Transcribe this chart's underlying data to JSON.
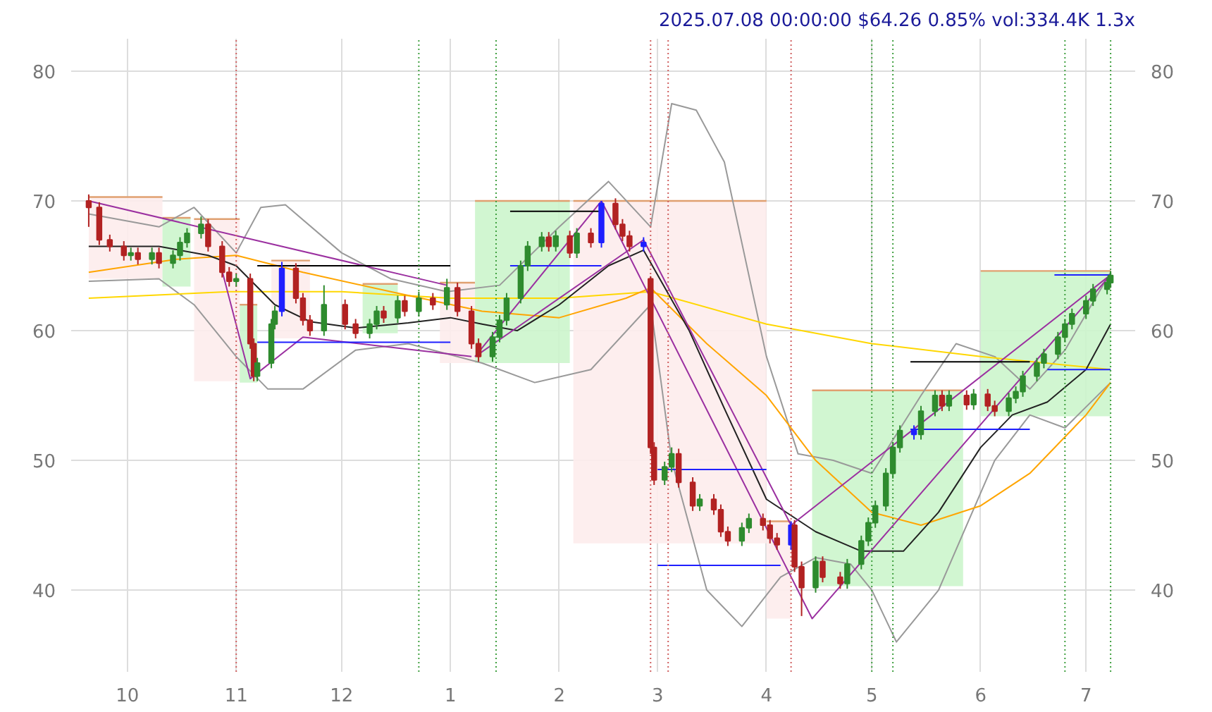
{
  "chart_data": {
    "type": "candlestick",
    "title": "2025.07.08 00:00:00 $64.26 0.85% vol:334.4K 1.3x",
    "xlim": [
      "2024-09-15",
      "2025-07-15"
    ],
    "xticks": [
      {
        "value": "2024-10-01",
        "label": "10"
      },
      {
        "value": "2024-11-01",
        "label": "11"
      },
      {
        "value": "2024-12-01",
        "label": "12"
      },
      {
        "value": "2025-01-01",
        "label": "1"
      },
      {
        "value": "2025-02-01",
        "label": "2"
      },
      {
        "value": "2025-03-01",
        "label": "3"
      },
      {
        "value": "2025-04-01",
        "label": "4"
      },
      {
        "value": "2025-05-01",
        "label": "5"
      },
      {
        "value": "2025-06-01",
        "label": "6"
      },
      {
        "value": "2025-07-01",
        "label": "7"
      }
    ],
    "ylim": [
      33.7,
      82.5
    ],
    "yticks": [
      40,
      50,
      60,
      70,
      80
    ],
    "y2lim": [
      33.7,
      82.5
    ],
    "y2ticks": [
      40,
      50,
      60,
      70,
      80
    ],
    "grid": true,
    "colors": [
      "#b22222",
      "#b22222",
      "#b22222",
      "#b22222",
      "#2e8b2e",
      "#b22222",
      "#2e8b2e",
      "#b22222",
      "#2e8b2e",
      "#2e8b2e",
      "#2e8b2e",
      "#2e8b2e",
      "#b22222",
      "#b22222",
      "#b22222",
      "#2e8b2e",
      "#b22222",
      "#b22222",
      "#2e8b2e",
      "#2e8b2e",
      "#2e8b2e",
      "#1f1fff",
      "#b22222",
      "#b22222",
      "#b22222",
      "#2e8b2e",
      "#b22222",
      "#b22222",
      "#2e8b2e",
      "#2e8b2e",
      "#b22222",
      "#2e8b2e",
      "#b22222",
      "#2e8b2e",
      "#b22222",
      "#2e8b2e",
      "#b22222",
      "#b22222",
      "#b22222",
      "#2e8b2e",
      "#2e8b2e",
      "#2e8b2e",
      "#2e8b2e",
      "#2e8b2e",
      "#2e8b2e",
      "#b22222",
      "#2e8b2e",
      "#b22222",
      "#2e8b2e",
      "#b22222",
      "#1f1fff",
      "#b22222",
      "#b22222",
      "#b22222",
      "#1f1fff",
      "#b22222",
      "#b22222",
      "#2e8b2e",
      "#2e8b2e",
      "#b22222",
      "#b22222",
      "#2e8b2e",
      "#b22222",
      "#b22222",
      "#b22222",
      "#2e8b2e",
      "#2e8b2e",
      "#b22222",
      "#b22222",
      "#b22222",
      "#1f1fff",
      "#b22222",
      "#b22222",
      "#2e8b2e",
      "#b22222",
      "#b22222",
      "#2e8b2e",
      "#2e8b2e",
      "#2e8b2e",
      "#2e8b2e",
      "#2e8b2e",
      "#2e8b2e",
      "#2e8b2e",
      "#1f1fff",
      "#2e8b2e",
      "#2e8b2e",
      "#b22222",
      "#2e8b2e",
      "#b22222",
      "#2e8b2e",
      "#b22222",
      "#b22222",
      "#2e8b2e",
      "#2e8b2e",
      "#2e8b2e",
      "#2e8b2e",
      "#2e8b2e",
      "#2e8b2e",
      "#2e8b2e",
      "#2e8b2e",
      "#2e8b2e",
      "#2e8b2e",
      "#2e8b2e",
      "#2e8b2e"
    ],
    "x": [
      "2024-09-20",
      "2024-09-23",
      "2024-09-26",
      "2024-09-30",
      "2024-10-02",
      "2024-10-04",
      "2024-10-08",
      "2024-10-10",
      "2024-10-14",
      "2024-10-16",
      "2024-10-18",
      "2024-10-22",
      "2024-10-24",
      "2024-10-28",
      "2024-10-30",
      "2024-11-01",
      "2024-11-05",
      "2024-11-06",
      "2024-11-07",
      "2024-11-11",
      "2024-11-12",
      "2024-11-14",
      "2024-11-18",
      "2024-11-20",
      "2024-11-22",
      "2024-11-26",
      "2024-12-02",
      "2024-12-05",
      "2024-12-09",
      "2024-12-11",
      "2024-12-13",
      "2024-12-17",
      "2024-12-19",
      "2024-12-23",
      "2024-12-27",
      "2024-12-31",
      "2025-01-03",
      "2025-01-07",
      "2025-01-09",
      "2025-01-13",
      "2025-01-15",
      "2025-01-17",
      "2025-01-21",
      "2025-01-23",
      "2025-01-27",
      "2025-01-29",
      "2025-01-31",
      "2025-02-04",
      "2025-02-06",
      "2025-02-10",
      "2025-02-13",
      "2025-02-17",
      "2025-02-19",
      "2025-02-21",
      "2025-02-25",
      "2025-02-27",
      "2025-02-28",
      "2025-03-03",
      "2025-03-05",
      "2025-03-07",
      "2025-03-11",
      "2025-03-13",
      "2025-03-17",
      "2025-03-19",
      "2025-03-21",
      "2025-03-25",
      "2025-03-27",
      "2025-03-31",
      "2025-04-02",
      "2025-04-04",
      "2025-04-08",
      "2025-04-09",
      "2025-04-11",
      "2025-04-15",
      "2025-04-17",
      "2025-04-22",
      "2025-04-24",
      "2025-04-28",
      "2025-04-30",
      "2025-05-02",
      "2025-05-05",
      "2025-05-07",
      "2025-05-09",
      "2025-05-13",
      "2025-05-15",
      "2025-05-19",
      "2025-05-21",
      "2025-05-23",
      "2025-05-28",
      "2025-05-30",
      "2025-06-03",
      "2025-06-05",
      "2025-06-09",
      "2025-06-11",
      "2025-06-13",
      "2025-06-17",
      "2025-06-19",
      "2025-06-23",
      "2025-06-25",
      "2025-06-27",
      "2025-07-01",
      "2025-07-03",
      "2025-07-07",
      "2025-07-08"
    ],
    "ohlc": [
      [
        70,
        70.5,
        68,
        69.5
      ],
      [
        69.5,
        69.9,
        66.6,
        67
      ],
      [
        67,
        67.4,
        66.1,
        66.5
      ],
      [
        66.5,
        66.9,
        65.4,
        65.8
      ],
      [
        65.8,
        66.4,
        65.4,
        66
      ],
      [
        66,
        66.4,
        65.1,
        65.5
      ],
      [
        65.5,
        66.4,
        65.1,
        66
      ],
      [
        66,
        66.4,
        64.8,
        65.2
      ],
      [
        65.2,
        66.2,
        64.8,
        65.8
      ],
      [
        65.8,
        67.2,
        65.4,
        66.8
      ],
      [
        66.8,
        67.9,
        66.4,
        67.5
      ],
      [
        67.5,
        68.8,
        67.1,
        68.2
      ],
      [
        68.2,
        68.6,
        66.1,
        66.5
      ],
      [
        66.5,
        66.9,
        64.1,
        64.5
      ],
      [
        64.5,
        64.9,
        63.4,
        63.8
      ],
      [
        63.8,
        64.4,
        63.4,
        64
      ],
      [
        64,
        64.4,
        58.6,
        59
      ],
      [
        59,
        59.4,
        56.1,
        56.5
      ],
      [
        56.5,
        57.9,
        56.1,
        57.5
      ],
      [
        57.5,
        60.9,
        57.1,
        60.5
      ],
      [
        60.5,
        61.9,
        60.1,
        61.5
      ],
      [
        61.5,
        65.3,
        61.1,
        64.8
      ],
      [
        64.8,
        65.2,
        62.1,
        62.5
      ],
      [
        62.5,
        62.9,
        60.4,
        60.8
      ],
      [
        60.8,
        61.2,
        59.6,
        60
      ],
      [
        60,
        63.5,
        59.6,
        62
      ],
      [
        62,
        62.4,
        60.1,
        60.5
      ],
      [
        60.5,
        60.9,
        59.4,
        59.8
      ],
      [
        59.8,
        60.9,
        59.4,
        60.5
      ],
      [
        60.5,
        61.9,
        60.1,
        61.5
      ],
      [
        61.5,
        61.9,
        60.6,
        61
      ],
      [
        61,
        62.7,
        60.6,
        62.3
      ],
      [
        62.3,
        62.7,
        61.1,
        61.5
      ],
      [
        61.5,
        63,
        61.1,
        62.5
      ],
      [
        62.5,
        62.9,
        61.6,
        62
      ],
      [
        62,
        64,
        61.6,
        63.3
      ],
      [
        63.3,
        63.7,
        61.1,
        61.5
      ],
      [
        61.5,
        61.9,
        58.6,
        59
      ],
      [
        59,
        59.4,
        57.6,
        58
      ],
      [
        58,
        59.9,
        57.6,
        59.5
      ],
      [
        59.5,
        61.2,
        59.1,
        60.8
      ],
      [
        60.8,
        62.9,
        60.4,
        62.5
      ],
      [
        62.5,
        65.4,
        62.1,
        65
      ],
      [
        65,
        66.9,
        64.6,
        66.5
      ],
      [
        66.5,
        67.6,
        66.1,
        67.2
      ],
      [
        67.2,
        67.6,
        66.1,
        66.5
      ],
      [
        66.5,
        67.7,
        66.1,
        67.3
      ],
      [
        67.3,
        67.7,
        65.6,
        66
      ],
      [
        66,
        67.9,
        65.6,
        67.5
      ],
      [
        67.5,
        67.9,
        66.4,
        66.8
      ],
      [
        66.8,
        70,
        66.4,
        69.8
      ],
      [
        69.8,
        70.2,
        67.8,
        68.2
      ],
      [
        68.2,
        68.6,
        66.9,
        67.3
      ],
      [
        67.3,
        67.7,
        66.1,
        66.5
      ],
      [
        66.5,
        67.2,
        66.1,
        66.8
      ],
      [
        64,
        64.2,
        50.5,
        51
      ],
      [
        51,
        51.4,
        48.1,
        48.5
      ],
      [
        48.5,
        49.9,
        48.1,
        49.5
      ],
      [
        49.5,
        51,
        49.1,
        50.5
      ],
      [
        50.5,
        50.9,
        47.9,
        48.3
      ],
      [
        48.3,
        48.7,
        46.1,
        46.5
      ],
      [
        46.5,
        47.4,
        46.1,
        47
      ],
      [
        47,
        47.4,
        45.8,
        46.2
      ],
      [
        46.2,
        46.6,
        44.1,
        44.5
      ],
      [
        44.5,
        44.9,
        43.4,
        43.8
      ],
      [
        43.8,
        45.2,
        43.4,
        44.8
      ],
      [
        44.8,
        45.9,
        44.4,
        45.5
      ],
      [
        45.5,
        45.9,
        44.6,
        45
      ],
      [
        45,
        45.4,
        43.6,
        44
      ],
      [
        44,
        44.4,
        43.1,
        43.5
      ],
      [
        43.5,
        45.3,
        43.1,
        45
      ],
      [
        45,
        45.4,
        41.4,
        41.8
      ],
      [
        41.8,
        42.2,
        38,
        40.2
      ],
      [
        40.2,
        42.6,
        39.8,
        42.2
      ],
      [
        42.2,
        42.6,
        40.6,
        41
      ],
      [
        41,
        41.4,
        40.1,
        40.5
      ],
      [
        40.5,
        42.4,
        40.1,
        42
      ],
      [
        42,
        44.2,
        41.6,
        43.8
      ],
      [
        43.8,
        45.6,
        43.4,
        45.2
      ],
      [
        45.2,
        46.9,
        44.8,
        46.5
      ],
      [
        46.5,
        49.4,
        46.1,
        49
      ],
      [
        49,
        51.4,
        48.6,
        51
      ],
      [
        51,
        52.7,
        50.6,
        52.3
      ],
      [
        52.3,
        52.7,
        51.6,
        52
      ],
      [
        52,
        54.2,
        51.6,
        53.8
      ],
      [
        53.8,
        55.4,
        53.4,
        55
      ],
      [
        55,
        55.4,
        53.8,
        54.2
      ],
      [
        54.2,
        55.4,
        53.8,
        55
      ],
      [
        55,
        55.4,
        53.9,
        54.3
      ],
      [
        54.3,
        55.5,
        53.9,
        55.1
      ],
      [
        55.1,
        55.5,
        53.8,
        54.2
      ],
      [
        54.2,
        54.6,
        53.4,
        53.8
      ],
      [
        53.8,
        55.2,
        53.4,
        54.8
      ],
      [
        54.8,
        55.7,
        54.4,
        55.3
      ],
      [
        55.3,
        56.9,
        54.9,
        56.5
      ],
      [
        56.5,
        57.9,
        56.1,
        57.5
      ],
      [
        57.5,
        58.6,
        57.1,
        58.2
      ],
      [
        58.2,
        59.9,
        57.8,
        59.5
      ],
      [
        59.5,
        60.9,
        59.1,
        60.5
      ],
      [
        60.5,
        61.7,
        60.1,
        61.3
      ],
      [
        61.3,
        62.7,
        60.9,
        62.3
      ],
      [
        62.3,
        63.6,
        61.9,
        63.2
      ],
      [
        63.2,
        64.1,
        62.8,
        63.7
      ],
      [
        63.7,
        64.6,
        63.3,
        64.26
      ]
    ],
    "series": [
      {
        "type": "line",
        "color": "#e0a070",
        "colors": [
          "#fdecec",
          "#fdecec"
        ],
        "x": [
          "2024-09-20",
          "2024-10-11"
        ],
        "values": [
          70.3,
          70.3
        ],
        "lower": [
          64,
          64
        ],
        "upper": [
          70.3,
          70.3
        ]
      },
      {
        "type": "line",
        "color": "#e0a070",
        "colors": [
          "#ccf5cc",
          "#ccf5cc"
        ],
        "x": [
          "2024-10-11",
          "2024-10-19"
        ],
        "values": [
          68.7,
          68.7
        ],
        "lower": [
          63.4,
          63.4
        ],
        "upper": [
          68.7,
          68.7
        ]
      },
      {
        "type": "line",
        "color": "#e0a070",
        "colors": [
          "#fdecec",
          "#fdecec"
        ],
        "x": [
          "2024-10-20",
          "2024-11-02"
        ],
        "values": [
          68.6,
          68.6
        ],
        "lower": [
          56.1,
          56.1
        ],
        "upper": [
          68.6,
          68.6
        ]
      },
      {
        "type": "line",
        "color": "#e0a070",
        "colors": [
          "#ccf5cc",
          "#ccf5cc"
        ],
        "x": [
          "2024-11-02",
          "2024-11-07"
        ],
        "values": [
          62,
          62
        ],
        "lower": [
          56,
          56
        ],
        "upper": [
          62,
          62
        ]
      },
      {
        "type": "line",
        "color": "#e0a070",
        "colors": [
          "#fdecec",
          "#fdecec"
        ],
        "x": [
          "2024-11-11",
          "2024-11-22"
        ],
        "values": [
          65.4,
          65.4
        ],
        "lower": [
          59.4,
          59.4
        ],
        "upper": [
          65.4,
          65.4
        ]
      },
      {
        "type": "line",
        "color": "#e0a070",
        "colors": [
          "#ccf5cc",
          "#ccf5cc"
        ],
        "x": [
          "2024-12-07",
          "2024-12-17"
        ],
        "values": [
          63.6,
          63.6
        ],
        "lower": [
          59.8,
          59.8
        ],
        "upper": [
          63.6,
          63.6
        ]
      },
      {
        "type": "line",
        "color": "#e0a070",
        "colors": [
          "#fdecec",
          "#fdecec"
        ],
        "x": [
          "2024-12-29",
          "2025-01-08"
        ],
        "values": [
          63.7,
          63.7
        ],
        "lower": [
          57.5,
          57.5
        ],
        "upper": [
          63.7,
          63.7
        ]
      },
      {
        "type": "line",
        "color": "#e0a070",
        "colors": [
          "#ccf5cc",
          "#ccf5cc"
        ],
        "x": [
          "2025-01-08",
          "2025-02-04"
        ],
        "values": [
          70,
          70
        ],
        "lower": [
          57.5,
          57.5
        ],
        "upper": [
          70,
          70
        ]
      },
      {
        "type": "line",
        "color": "#e0a070",
        "colors": [
          "#fdecec",
          "#fdecec"
        ],
        "x": [
          "2025-02-05",
          "2025-04-01"
        ],
        "values": [
          70,
          70
        ],
        "lower": [
          43.6,
          43.6
        ],
        "upper": [
          70,
          70
        ]
      },
      {
        "type": "line",
        "color": "#e0a070",
        "colors": [
          "#fdecec",
          "#fdecec"
        ],
        "x": [
          "2025-04-01",
          "2025-04-08"
        ],
        "values": [
          45.3,
          45.3
        ],
        "lower": [
          37.8,
          37.8
        ],
        "upper": [
          45.3,
          45.3
        ]
      },
      {
        "type": "line",
        "color": "#e0a070",
        "colors": [
          "#ccf5cc",
          "#ccf5cc"
        ],
        "x": [
          "2025-04-14",
          "2025-05-27"
        ],
        "values": [
          55.4,
          55.4
        ],
        "lower": [
          40.3,
          40.3
        ],
        "upper": [
          55.4,
          55.4
        ]
      },
      {
        "type": "line",
        "color": "#e0a070",
        "colors": [
          "#ccf5cc",
          "#ccf5cc"
        ],
        "x": [
          "2025-06-01",
          "2025-07-08"
        ],
        "values": [
          64.6,
          64.6
        ],
        "lower": [
          53.4,
          53.4
        ],
        "upper": [
          64.6,
          64.6
        ]
      },
      {
        "type": "line",
        "color": "#999999",
        "x": [
          "2024-09-20",
          "2024-10-10",
          "2024-10-20",
          "2024-11-01",
          "2024-11-08",
          "2024-11-15",
          "2024-12-01",
          "2024-12-15",
          "2024-12-31",
          "2025-01-15",
          "2025-02-01",
          "2025-02-15",
          "2025-02-27",
          "2025-03-05",
          "2025-03-12",
          "2025-03-20",
          "2025-04-01",
          "2025-04-10",
          "2025-04-20",
          "2025-05-01",
          "2025-05-15",
          "2025-05-25",
          "2025-06-05",
          "2025-06-15",
          "2025-06-25",
          "2025-07-08"
        ],
        "values": [
          69,
          68,
          69.5,
          66,
          69.5,
          69.7,
          66,
          64,
          63,
          63.5,
          68,
          71.5,
          68,
          77.5,
          77,
          73,
          58,
          50.5,
          50,
          49,
          55,
          59,
          58,
          55.5,
          58.5,
          64.5
        ]
      },
      {
        "type": "line",
        "color": "#999999",
        "x": [
          "2024-09-20",
          "2024-10-10",
          "2024-10-20",
          "2024-11-01",
          "2024-11-10",
          "2024-11-20",
          "2024-12-05",
          "2024-12-20",
          "2025-01-10",
          "2025-01-25",
          "2025-02-10",
          "2025-02-27",
          "2025-03-05",
          "2025-03-15",
          "2025-03-25",
          "2025-04-05",
          "2025-04-15",
          "2025-04-25",
          "2025-05-01",
          "2025-05-08",
          "2025-05-20",
          "2025-06-05",
          "2025-06-15",
          "2025-06-25",
          "2025-07-08"
        ],
        "values": [
          63.8,
          64,
          62,
          58,
          55.5,
          55.5,
          58.5,
          59,
          57.5,
          56,
          57,
          62,
          50,
          40,
          37.2,
          41,
          42.5,
          42,
          40,
          36,
          40,
          50,
          53.5,
          52.5,
          56
        ]
      },
      {
        "type": "line",
        "color": "#ffd700",
        "x": [
          "2024-09-20",
          "2024-10-30",
          "2024-12-01",
          "2025-01-01",
          "2025-02-01",
          "2025-02-27",
          "2025-04-01",
          "2025-05-01",
          "2025-06-01",
          "2025-07-08"
        ],
        "values": [
          62.5,
          63,
          63,
          62.5,
          62.5,
          63,
          60.5,
          59,
          58,
          57
        ]
      },
      {
        "type": "line",
        "color": "#ffa500",
        "x": [
          "2024-09-20",
          "2024-10-15",
          "2024-11-01",
          "2024-11-20",
          "2024-12-15",
          "2025-01-10",
          "2025-02-01",
          "2025-02-20",
          "2025-02-27",
          "2025-03-15",
          "2025-04-01",
          "2025-04-15",
          "2025-05-01",
          "2025-05-15",
          "2025-06-01",
          "2025-06-15",
          "2025-07-01",
          "2025-07-08"
        ],
        "values": [
          64.5,
          65.5,
          65.8,
          64.5,
          63,
          61.5,
          61,
          62.5,
          63.3,
          59,
          55,
          50,
          46,
          45,
          46.5,
          49,
          53.5,
          56
        ]
      },
      {
        "type": "line",
        "color": "#222222",
        "x": [
          "2024-09-20",
          "2024-10-10",
          "2024-10-24",
          "2024-11-01",
          "2024-11-12",
          "2024-11-22",
          "2024-12-05",
          "2024-12-20",
          "2025-01-01",
          "2025-01-10",
          "2025-01-20",
          "2025-02-01",
          "2025-02-15",
          "2025-02-25",
          "2025-03-10",
          "2025-03-20",
          "2025-04-01",
          "2025-04-15",
          "2025-04-28",
          "2025-05-10",
          "2025-05-20",
          "2025-06-01",
          "2025-06-10",
          "2025-06-20",
          "2025-07-01",
          "2025-07-08"
        ],
        "values": [
          66.5,
          66.5,
          65.8,
          65,
          62,
          60.7,
          60.2,
          60.6,
          61,
          60.5,
          60,
          62,
          65,
          66.2,
          60,
          54,
          47,
          44.5,
          43,
          43,
          46,
          51,
          53.5,
          54.5,
          57,
          60.5
        ]
      },
      {
        "type": "line",
        "color": "#9b30a0",
        "x": [
          "2024-09-20",
          "2024-12-31"
        ],
        "values": [
          70,
          63.5
        ]
      },
      {
        "type": "line",
        "color": "#9b30a0",
        "x": [
          "2024-10-28",
          "2024-11-05",
          "2024-11-20",
          "2025-01-07"
        ],
        "values": [
          64.6,
          56.3,
          59.5,
          58
        ]
      },
      {
        "type": "line",
        "color": "#9b30a0",
        "x": [
          "2025-01-08",
          "2025-02-13"
        ],
        "values": [
          58,
          70
        ]
      },
      {
        "type": "line",
        "color": "#9b30a0",
        "x": [
          "2025-01-08",
          "2025-02-25"
        ],
        "values": [
          58,
          67
        ]
      },
      {
        "type": "line",
        "color": "#9b30a0",
        "x": [
          "2025-02-13",
          "2025-04-14",
          "2025-07-08"
        ],
        "values": [
          70,
          37.8,
          64.3
        ]
      },
      {
        "type": "line",
        "color": "#9b30a0",
        "x": [
          "2025-02-25",
          "2025-04-08",
          "2025-07-08"
        ],
        "values": [
          67,
          45,
          64.3
        ]
      },
      {
        "type": "line",
        "color": "#000000",
        "x": [
          "2024-11-07",
          "2025-01-01"
        ],
        "values": [
          65,
          65
        ]
      },
      {
        "type": "line",
        "color": "#000000",
        "x": [
          "2025-01-18",
          "2025-02-13"
        ],
        "values": [
          69.2,
          69.2
        ]
      },
      {
        "type": "line",
        "color": "#000000",
        "x": [
          "2025-05-12",
          "2025-06-15"
        ],
        "values": [
          57.6,
          57.6
        ]
      },
      {
        "type": "line",
        "color": "#1f1fff",
        "x": [
          "2025-06-22",
          "2025-07-08"
        ],
        "values": [
          64.3,
          64.3
        ]
      },
      {
        "type": "line",
        "color": "#1f1fff",
        "x": [
          "2025-06-20",
          "2025-07-08"
        ],
        "values": [
          57,
          57
        ]
      },
      {
        "type": "line",
        "color": "#1f1fff",
        "x": [
          "2024-11-07",
          "2025-01-01"
        ],
        "values": [
          59.1,
          59.1
        ]
      },
      {
        "type": "line",
        "color": "#1f1fff",
        "x": [
          "2025-01-18",
          "2025-02-13"
        ],
        "values": [
          65,
          65
        ]
      },
      {
        "type": "line",
        "color": "#1f1fff",
        "x": [
          "2025-03-01",
          "2025-04-01"
        ],
        "values": [
          49.3,
          49.3
        ]
      },
      {
        "type": "line",
        "color": "#1f1fff",
        "x": [
          "2025-03-01",
          "2025-04-05"
        ],
        "values": [
          41.9,
          41.9
        ]
      },
      {
        "type": "line",
        "color": "#1f1fff",
        "x": [
          "2025-05-12",
          "2025-06-15"
        ],
        "values": [
          52.4,
          52.4
        ]
      }
    ],
    "ref_lines": [
      {
        "axis": "x",
        "value": "2024-11-01",
        "color": "#d06060",
        "line_style": "dotted"
      },
      {
        "axis": "x",
        "value": "2024-12-23",
        "color": "#40a040",
        "line_style": "dotted"
      },
      {
        "axis": "x",
        "value": "2025-01-14",
        "color": "#40a040",
        "line_style": "dotted"
      },
      {
        "axis": "x",
        "value": "2025-02-27",
        "color": "#d06060",
        "line_style": "dotted"
      },
      {
        "axis": "x",
        "value": "2025-03-04",
        "color": "#d06060",
        "line_style": "dotted"
      },
      {
        "axis": "x",
        "value": "2025-04-08",
        "color": "#d06060",
        "line_style": "dotted"
      },
      {
        "axis": "x",
        "value": "2025-05-01",
        "color": "#40a040",
        "line_style": "dotted"
      },
      {
        "axis": "x",
        "value": "2025-05-07",
        "color": "#40a040",
        "line_style": "dotted"
      },
      {
        "axis": "x",
        "value": "2025-06-25",
        "color": "#40a040",
        "line_style": "dotted"
      },
      {
        "axis": "x",
        "value": "2025-07-08",
        "color": "#40a040",
        "line_style": "dotted"
      }
    ]
  }
}
